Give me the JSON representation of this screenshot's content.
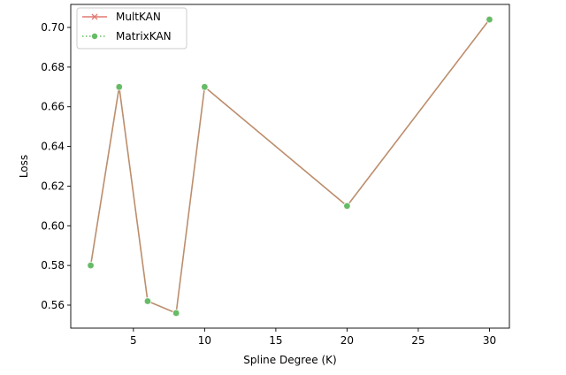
{
  "chart_data": {
    "type": "line",
    "title": "",
    "xlabel": "Spline Degree (K)",
    "ylabel": "Loss",
    "xlim": [
      0.6,
      31.4
    ],
    "ylim": [
      0.5484,
      0.7116
    ],
    "xticks": [
      5,
      10,
      15,
      20,
      25,
      30
    ],
    "yticks": [
      0.56,
      0.58,
      0.6,
      0.62,
      0.64,
      0.66,
      0.68,
      0.7
    ],
    "ytick_labels": [
      "0.56",
      "0.58",
      "0.60",
      "0.62",
      "0.64",
      "0.66",
      "0.68",
      "0.70"
    ],
    "grid": false,
    "legend_position": "upper-left",
    "x": [
      2,
      4,
      6,
      8,
      10,
      20,
      30
    ],
    "series": [
      {
        "name": "MultKAN",
        "values": [
          0.58,
          0.67,
          0.562,
          0.556,
          0.67,
          0.61,
          0.704
        ],
        "color": "#e07a70",
        "line_style": "solid",
        "marker": "x"
      },
      {
        "name": "MatrixKAN",
        "values": [
          0.58,
          0.67,
          0.562,
          0.556,
          0.67,
          0.61,
          0.704
        ],
        "color": "#66bb66",
        "line_style": "dotted",
        "marker": "circle"
      }
    ],
    "overlap_line_color": "#c58a6e"
  }
}
